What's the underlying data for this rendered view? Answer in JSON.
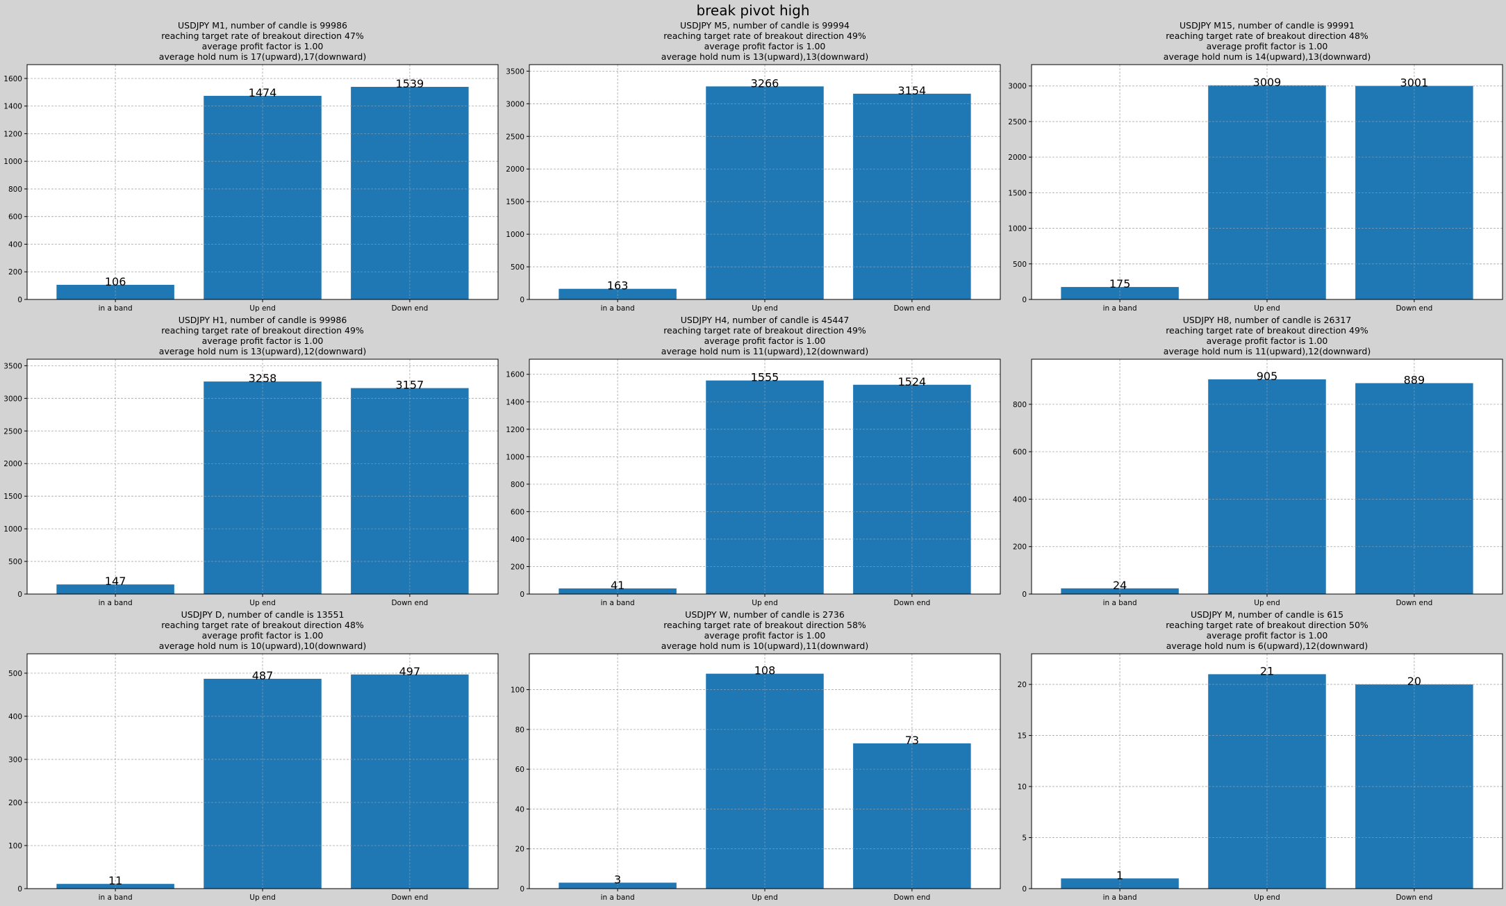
{
  "figure": {
    "suptitle": "break pivot high",
    "background": "#d3d3d3",
    "bar_color": "#1f77b4",
    "grid": true
  },
  "chart_data": [
    {
      "type": "bar",
      "title": [
        "USDJPY M1,  number of candle is 99986",
        "reaching target rate of breakout direction 47%",
        "average profit factor is 1.00",
        "average hold num is 17(upward),17(downward)"
      ],
      "categories": [
        "in a band",
        "Up end",
        "Down end"
      ],
      "values": [
        106,
        1474,
        1539
      ],
      "ylim": [
        0,
        1700
      ],
      "yticks": [
        0,
        200,
        400,
        600,
        800,
        1000,
        1200,
        1400,
        1600
      ]
    },
    {
      "type": "bar",
      "title": [
        "USDJPY M5,  number of candle is 99994",
        "reaching target rate of breakout direction 49%",
        "average profit factor is 1.00",
        "average hold num is 13(upward),13(downward)"
      ],
      "categories": [
        "in a band",
        "Up end",
        "Down end"
      ],
      "values": [
        163,
        3266,
        3154
      ],
      "ylim": [
        0,
        3600
      ],
      "yticks": [
        0,
        500,
        1000,
        1500,
        2000,
        2500,
        3000,
        3500
      ]
    },
    {
      "type": "bar",
      "title": [
        "USDJPY M15,  number of candle is 99991",
        "reaching target rate of breakout direction 48%",
        "average profit factor is 1.00",
        "average hold num is 14(upward),13(downward)"
      ],
      "categories": [
        "in a band",
        "Up end",
        "Down end"
      ],
      "values": [
        175,
        3009,
        3001
      ],
      "ylim": [
        0,
        3300
      ],
      "yticks": [
        0,
        500,
        1000,
        1500,
        2000,
        2500,
        3000
      ]
    },
    {
      "type": "bar",
      "title": [
        "USDJPY H1,  number of candle is 99986",
        "reaching target rate of breakout direction 49%",
        "average profit factor is 1.00",
        "average hold num is 13(upward),12(downward)"
      ],
      "categories": [
        "in a band",
        "Up end",
        "Down end"
      ],
      "values": [
        147,
        3258,
        3157
      ],
      "ylim": [
        0,
        3600
      ],
      "yticks": [
        0,
        500,
        1000,
        1500,
        2000,
        2500,
        3000,
        3500
      ]
    },
    {
      "type": "bar",
      "title": [
        "USDJPY H4,  number of candle is 45447",
        "reaching target rate of breakout direction 49%",
        "average profit factor is 1.00",
        "average hold num is 11(upward),12(downward)"
      ],
      "categories": [
        "in a band",
        "Up end",
        "Down end"
      ],
      "values": [
        41,
        1555,
        1524
      ],
      "ylim": [
        0,
        1710
      ],
      "yticks": [
        0,
        200,
        400,
        600,
        800,
        1000,
        1200,
        1400,
        1600
      ]
    },
    {
      "type": "bar",
      "title": [
        "USDJPY H8,  number of candle is 26317",
        "reaching target rate of breakout direction 49%",
        "average profit factor is 1.00",
        "average hold num is 11(upward),12(downward)"
      ],
      "categories": [
        "in a band",
        "Up end",
        "Down end"
      ],
      "values": [
        24,
        905,
        889
      ],
      "ylim": [
        0,
        990
      ],
      "yticks": [
        0,
        200,
        400,
        600,
        800
      ]
    },
    {
      "type": "bar",
      "title": [
        "USDJPY D,  number of candle is 13551",
        "reaching target rate of breakout direction 48%",
        "average profit factor is 1.00",
        "average hold num is 10(upward),10(downward)"
      ],
      "categories": [
        "in a band",
        "Up end",
        "Down end"
      ],
      "values": [
        11,
        487,
        497
      ],
      "ylim": [
        0,
        545
      ],
      "yticks": [
        0,
        100,
        200,
        300,
        400,
        500
      ]
    },
    {
      "type": "bar",
      "title": [
        "USDJPY W,  number of candle is 2736",
        "reaching target rate of breakout direction 58%",
        "average profit factor is 1.00",
        "average hold num is 10(upward),11(downward)"
      ],
      "categories": [
        "in a band",
        "Up end",
        "Down end"
      ],
      "values": [
        3,
        108,
        73
      ],
      "ylim": [
        0,
        118
      ],
      "yticks": [
        0,
        20,
        40,
        60,
        80,
        100
      ]
    },
    {
      "type": "bar",
      "title": [
        "USDJPY M,  number of candle is 615",
        "reaching target rate of breakout direction 50%",
        "average profit factor is 1.00",
        "average hold num is 6(upward),12(downward)"
      ],
      "categories": [
        "in a band",
        "Up end",
        "Down end"
      ],
      "values": [
        1,
        21,
        20
      ],
      "ylim": [
        0,
        23
      ],
      "yticks": [
        0,
        5,
        10,
        15,
        20
      ]
    }
  ]
}
